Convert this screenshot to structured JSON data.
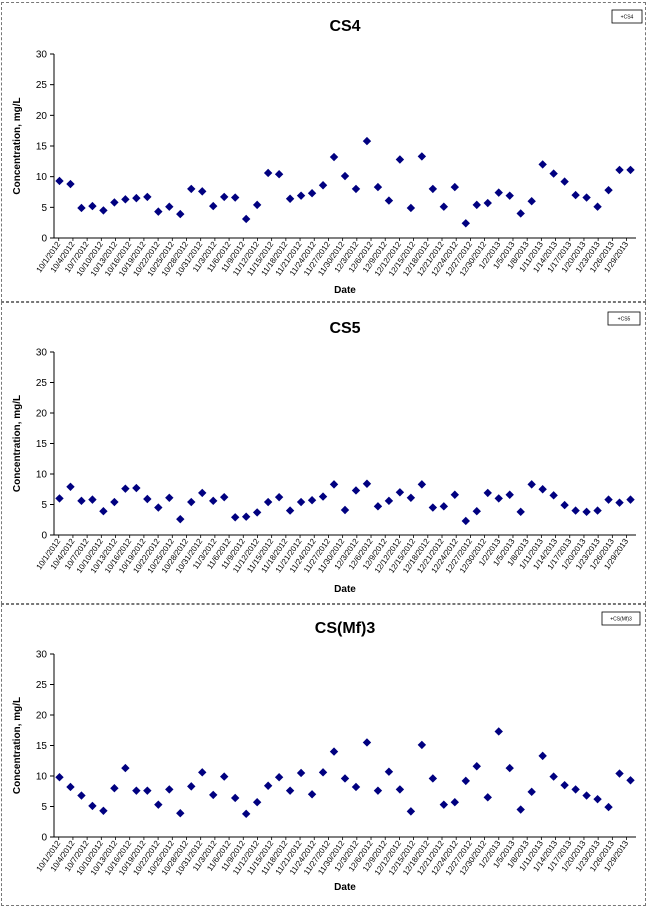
{
  "chart_data": [
    {
      "type": "scatter",
      "title": "CS4",
      "xlabel": "Date",
      "ylabel": "Concentration, mg/L",
      "ylim": [
        0,
        30
      ],
      "yticks": [
        0,
        5,
        10,
        15,
        20,
        25,
        30
      ],
      "legend": "+CS4",
      "legend_position": "top-right",
      "marker_color": "#000080",
      "x_tick_labels": [
        "10/1/2012",
        "10/4/2012",
        "10/7/2012",
        "10/10/2012",
        "10/13/2012",
        "10/16/2012",
        "10/19/2012",
        "10/22/2012",
        "10/25/2012",
        "10/28/2012",
        "10/31/2012",
        "11/3/2012",
        "11/6/2012",
        "11/9/2012",
        "11/12/2012",
        "11/15/2012",
        "11/18/2012",
        "11/21/2012",
        "11/24/2012",
        "11/27/2012",
        "11/30/2012",
        "12/3/2012",
        "12/6/2012",
        "12/9/2012",
        "12/12/2012",
        "12/15/2012",
        "12/18/2012",
        "12/21/2012",
        "12/24/2012",
        "12/27/2012",
        "12/30/2012",
        "1/2/2013",
        "1/5/2013",
        "1/8/2013",
        "1/11/2013",
        "1/14/2013",
        "1/17/2013",
        "1/20/2013",
        "1/23/2013",
        "1/26/2013",
        "1/29/2013"
      ],
      "values": [
        9.3,
        8.8,
        4.9,
        5.2,
        4.5,
        5.8,
        6.3,
        6.5,
        6.7,
        4.3,
        5.1,
        3.9,
        8.0,
        7.6,
        5.2,
        6.7,
        6.6,
        3.1,
        5.4,
        10.6,
        10.4,
        6.4,
        6.9,
        7.3,
        8.6,
        13.2,
        10.1,
        8.0,
        15.8,
        8.3,
        6.1,
        12.8,
        4.9,
        13.3,
        8.0,
        5.1,
        8.3,
        2.4,
        5.4,
        5.7,
        7.4,
        6.9,
        4.0,
        6.0,
        12.0,
        10.5,
        9.2,
        7.0,
        6.6,
        5.1,
        7.8,
        11.1,
        11.1
      ]
    },
    {
      "type": "scatter",
      "title": "CS5",
      "xlabel": "Date",
      "ylabel": "Concentration, mg/L",
      "ylim": [
        0,
        30
      ],
      "yticks": [
        0,
        5,
        10,
        15,
        20,
        25,
        30
      ],
      "legend": "+CS5",
      "legend_position": "top-right",
      "marker_color": "#000080",
      "x_tick_labels": [
        "10/1/2012",
        "10/4/2012",
        "10/7/2012",
        "10/10/2012",
        "10/13/2012",
        "10/16/2012",
        "10/19/2012",
        "10/22/2012",
        "10/25/2012",
        "10/28/2012",
        "10/31/2012",
        "11/3/2012",
        "11/6/2012",
        "11/9/2012",
        "11/12/2012",
        "11/15/2012",
        "11/18/2012",
        "11/21/2012",
        "11/24/2012",
        "11/27/2012",
        "11/30/2012",
        "12/3/2012",
        "12/6/2012",
        "12/9/2012",
        "12/12/2012",
        "12/15/2012",
        "12/18/2012",
        "12/21/2012",
        "12/24/2012",
        "12/27/2012",
        "12/30/2012",
        "1/2/2013",
        "1/5/2013",
        "1/8/2013",
        "1/11/2013",
        "1/14/2013",
        "1/17/2013",
        "1/20/2013",
        "1/23/2013",
        "1/26/2013",
        "1/29/2013"
      ],
      "values": [
        6.0,
        7.9,
        5.6,
        5.8,
        3.9,
        5.4,
        7.6,
        7.7,
        5.9,
        4.5,
        6.1,
        2.6,
        5.4,
        6.9,
        5.6,
        6.2,
        2.9,
        3.0,
        3.7,
        5.4,
        6.2,
        4.0,
        5.4,
        5.7,
        6.3,
        8.3,
        4.1,
        7.3,
        8.4,
        4.7,
        5.6,
        7.0,
        6.1,
        8.3,
        4.5,
        4.7,
        6.6,
        2.3,
        3.9,
        6.9,
        6.0,
        6.6,
        3.8,
        8.3,
        7.5,
        6.5,
        4.9,
        4.0,
        3.8,
        4.0,
        5.8,
        5.3,
        5.8
      ]
    },
    {
      "type": "scatter",
      "title": "CS(Mf)3",
      "xlabel": "Date",
      "ylabel": "Concentration, mg/L",
      "ylim": [
        0,
        30
      ],
      "yticks": [
        0,
        5,
        10,
        15,
        20,
        25,
        30
      ],
      "legend": "+CS(Mf)3",
      "legend_position": "top-right",
      "marker_color": "#000080",
      "x_tick_labels": [
        "10/1/2012",
        "10/4/2012",
        "10/7/2012",
        "10/10/2012",
        "10/13/2012",
        "10/16/2012",
        "10/19/2012",
        "10/22/2012",
        "10/25/2012",
        "10/28/2012",
        "10/31/2012",
        "11/3/2012",
        "11/6/2012",
        "11/9/2012",
        "11/12/2012",
        "11/15/2012",
        "11/18/2012",
        "11/21/2012",
        "11/24/2012",
        "11/27/2012",
        "11/30/2012",
        "12/3/2012",
        "12/6/2012",
        "12/9/2012",
        "12/12/2012",
        "12/15/2012",
        "12/18/2012",
        "12/21/2012",
        "12/24/2012",
        "12/27/2012",
        "12/30/2012",
        "1/2/2013",
        "1/5/2013",
        "1/8/2013",
        "1/11/2013",
        "1/14/2013",
        "1/17/2013",
        "1/20/2013",
        "1/23/2013",
        "1/26/2013",
        "1/29/2013"
      ],
      "values": [
        9.8,
        8.2,
        6.8,
        5.1,
        4.3,
        8.0,
        11.3,
        7.6,
        7.6,
        5.3,
        7.8,
        3.9,
        8.3,
        10.6,
        6.9,
        9.9,
        6.4,
        3.8,
        5.7,
        8.4,
        9.8,
        7.6,
        10.5,
        7.0,
        10.6,
        14.0,
        9.6,
        8.2,
        15.5,
        7.6,
        10.7,
        7.8,
        4.2,
        15.1,
        9.6,
        5.3,
        5.7,
        9.2,
        11.6,
        6.5,
        17.3,
        11.3,
        4.5,
        7.4,
        13.3,
        9.9,
        8.5,
        7.8,
        6.8,
        6.2,
        4.9,
        10.4,
        9.3
      ]
    }
  ]
}
